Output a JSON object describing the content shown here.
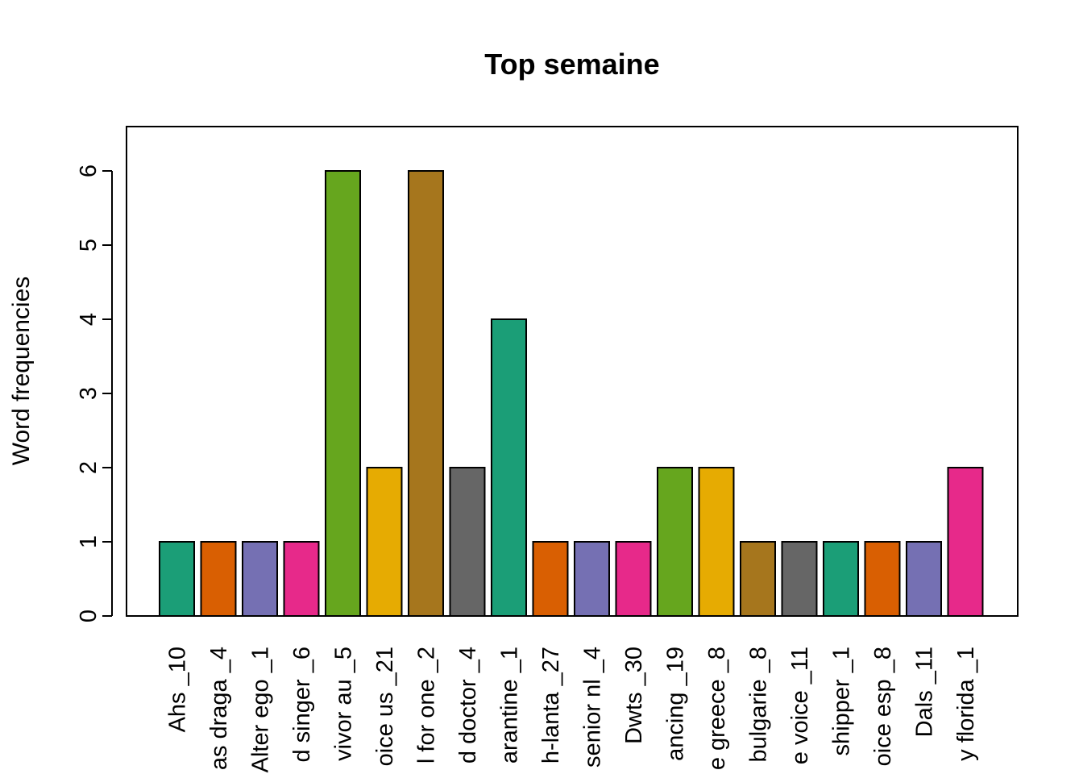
{
  "chart_data": {
    "type": "bar",
    "title": "Top semaine",
    "xlabel": "",
    "ylabel": "Word frequencies",
    "ylim": [
      0,
      6.6
    ],
    "yticks": [
      0,
      1,
      2,
      3,
      4,
      5,
      6
    ],
    "grid": false,
    "legend": "none",
    "categories": [
      "Ahs _10",
      "as draga _4",
      "Alter ego _1",
      "d singer _6",
      "vivor au _5",
      "oice us _21",
      "l for one _2",
      "d doctor _4",
      "arantine _1",
      "h-lanta _27",
      "senior nl _4",
      "Dwts _30",
      "ancing _19",
      "e greece _8",
      "bulgarie _8",
      "e voice _11",
      "shipper _1",
      "oice esp _8",
      "Dals _11",
      "y florida _1"
    ],
    "values": [
      1,
      1,
      1,
      1,
      6,
      2,
      6,
      2,
      4,
      1,
      1,
      1,
      2,
      2,
      1,
      1,
      1,
      1,
      1,
      2
    ],
    "colors": [
      "#1B9E77",
      "#D95F02",
      "#7570B3",
      "#E7298A",
      "#66A61E",
      "#E6AB02",
      "#A6761D",
      "#666666",
      "#1B9E77",
      "#D95F02",
      "#7570B3",
      "#E7298A",
      "#66A61E",
      "#E6AB02",
      "#A6761D",
      "#666666",
      "#1B9E77",
      "#D95F02",
      "#7570B3",
      "#E7298A"
    ]
  }
}
